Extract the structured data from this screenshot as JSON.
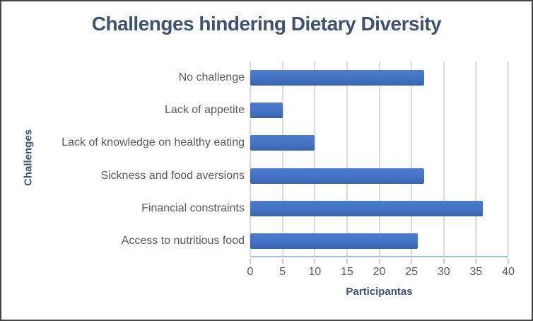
{
  "window": {
    "background": "#ffffff",
    "border_color": "#454545"
  },
  "chart_data": {
    "type": "bar",
    "orientation": "horizontal",
    "title": "Challenges hindering Dietary Diversity",
    "xlabel": "Participantas",
    "ylabel": "Challenges",
    "categories": [
      "No challenge",
      "Lack of appetite",
      "Lack of knowledge on healthy eating",
      "Sickness and food aversions",
      "Financial constraints",
      "Access to nutritious food"
    ],
    "values": [
      27,
      5,
      10,
      27,
      36,
      26
    ],
    "xlim": [
      0,
      40
    ],
    "xticks": [
      0,
      5,
      10,
      15,
      20,
      25,
      30,
      35,
      40
    ],
    "grid": true,
    "legend": false,
    "colors": {
      "bar": "#4472C4",
      "bar_gradient_top": "#4E7BCB",
      "bar_gradient_bottom": "#3A64AB",
      "title_text": "#3D536F",
      "category_text": "#595959",
      "tick_text": "#595959",
      "gridline": "#DADADA",
      "axis_line": "#ABC0DE",
      "tick_mark": "#C6CDD8"
    }
  }
}
